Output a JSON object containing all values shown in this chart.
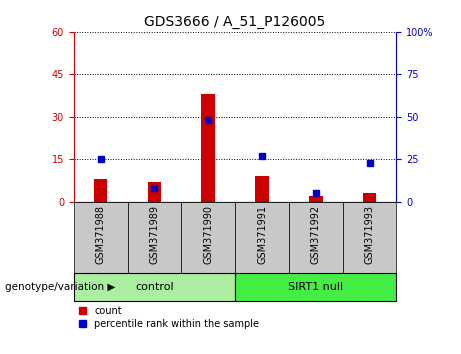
{
  "title": "GDS3666 / A_51_P126005",
  "samples": [
    "GSM371988",
    "GSM371989",
    "GSM371990",
    "GSM371991",
    "GSM371992",
    "GSM371993"
  ],
  "count_values": [
    8,
    7,
    38,
    9,
    2,
    3
  ],
  "percentile_values": [
    25,
    8,
    48,
    27,
    5,
    23
  ],
  "groups": [
    {
      "label": "control",
      "start": 0,
      "end": 3,
      "color": "#AAEEA0"
    },
    {
      "label": "SIRT1 null",
      "start": 3,
      "end": 6,
      "color": "#44EE44"
    }
  ],
  "left_ylim": [
    0,
    60
  ],
  "right_ylim": [
    0,
    100
  ],
  "left_yticks": [
    0,
    15,
    30,
    45,
    60
  ],
  "right_yticks": [
    0,
    25,
    50,
    75,
    100
  ],
  "left_tick_color": "#CC0000",
  "right_tick_color": "#0000CC",
  "bar_color": "#CC0000",
  "dot_color": "#0000CC",
  "tick_label_bg": "#C8C8C8",
  "group_label": "genotype/variation",
  "legend_count": "count",
  "legend_percentile": "percentile rank within the sample",
  "title_fontsize": 10,
  "tick_fontsize": 7,
  "bar_width": 0.25,
  "dot_size": 4,
  "right_ytick_labels": [
    "0",
    "25",
    "50",
    "75",
    "100%"
  ]
}
